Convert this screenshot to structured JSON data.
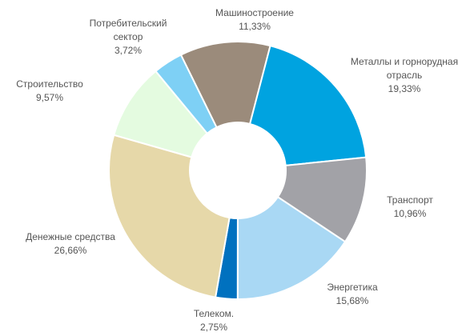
{
  "chart_data": {
    "type": "donut",
    "categories": [
      "Машиностроение",
      "Металлы и горнорудная отрасль",
      "Транспорт",
      "Энергетика",
      "Телеком.",
      "Денежные средства",
      "Строительство",
      "Потребительский сектор"
    ],
    "values": [
      11.33,
      19.33,
      10.96,
      15.68,
      2.75,
      26.66,
      9.57,
      3.72
    ],
    "value_labels": [
      "11,33%",
      "19,33%",
      "10,96%",
      "15,68%",
      "2,75%",
      "26,66%",
      "9,57%",
      "3,72%"
    ],
    "colors": [
      "#9b8b7b",
      "#00a3e0",
      "#a2a2a7",
      "#a9d8f4",
      "#0071bf",
      "#e6d8a9",
      "#e4fbe0",
      "#7ed0f5"
    ]
  }
}
